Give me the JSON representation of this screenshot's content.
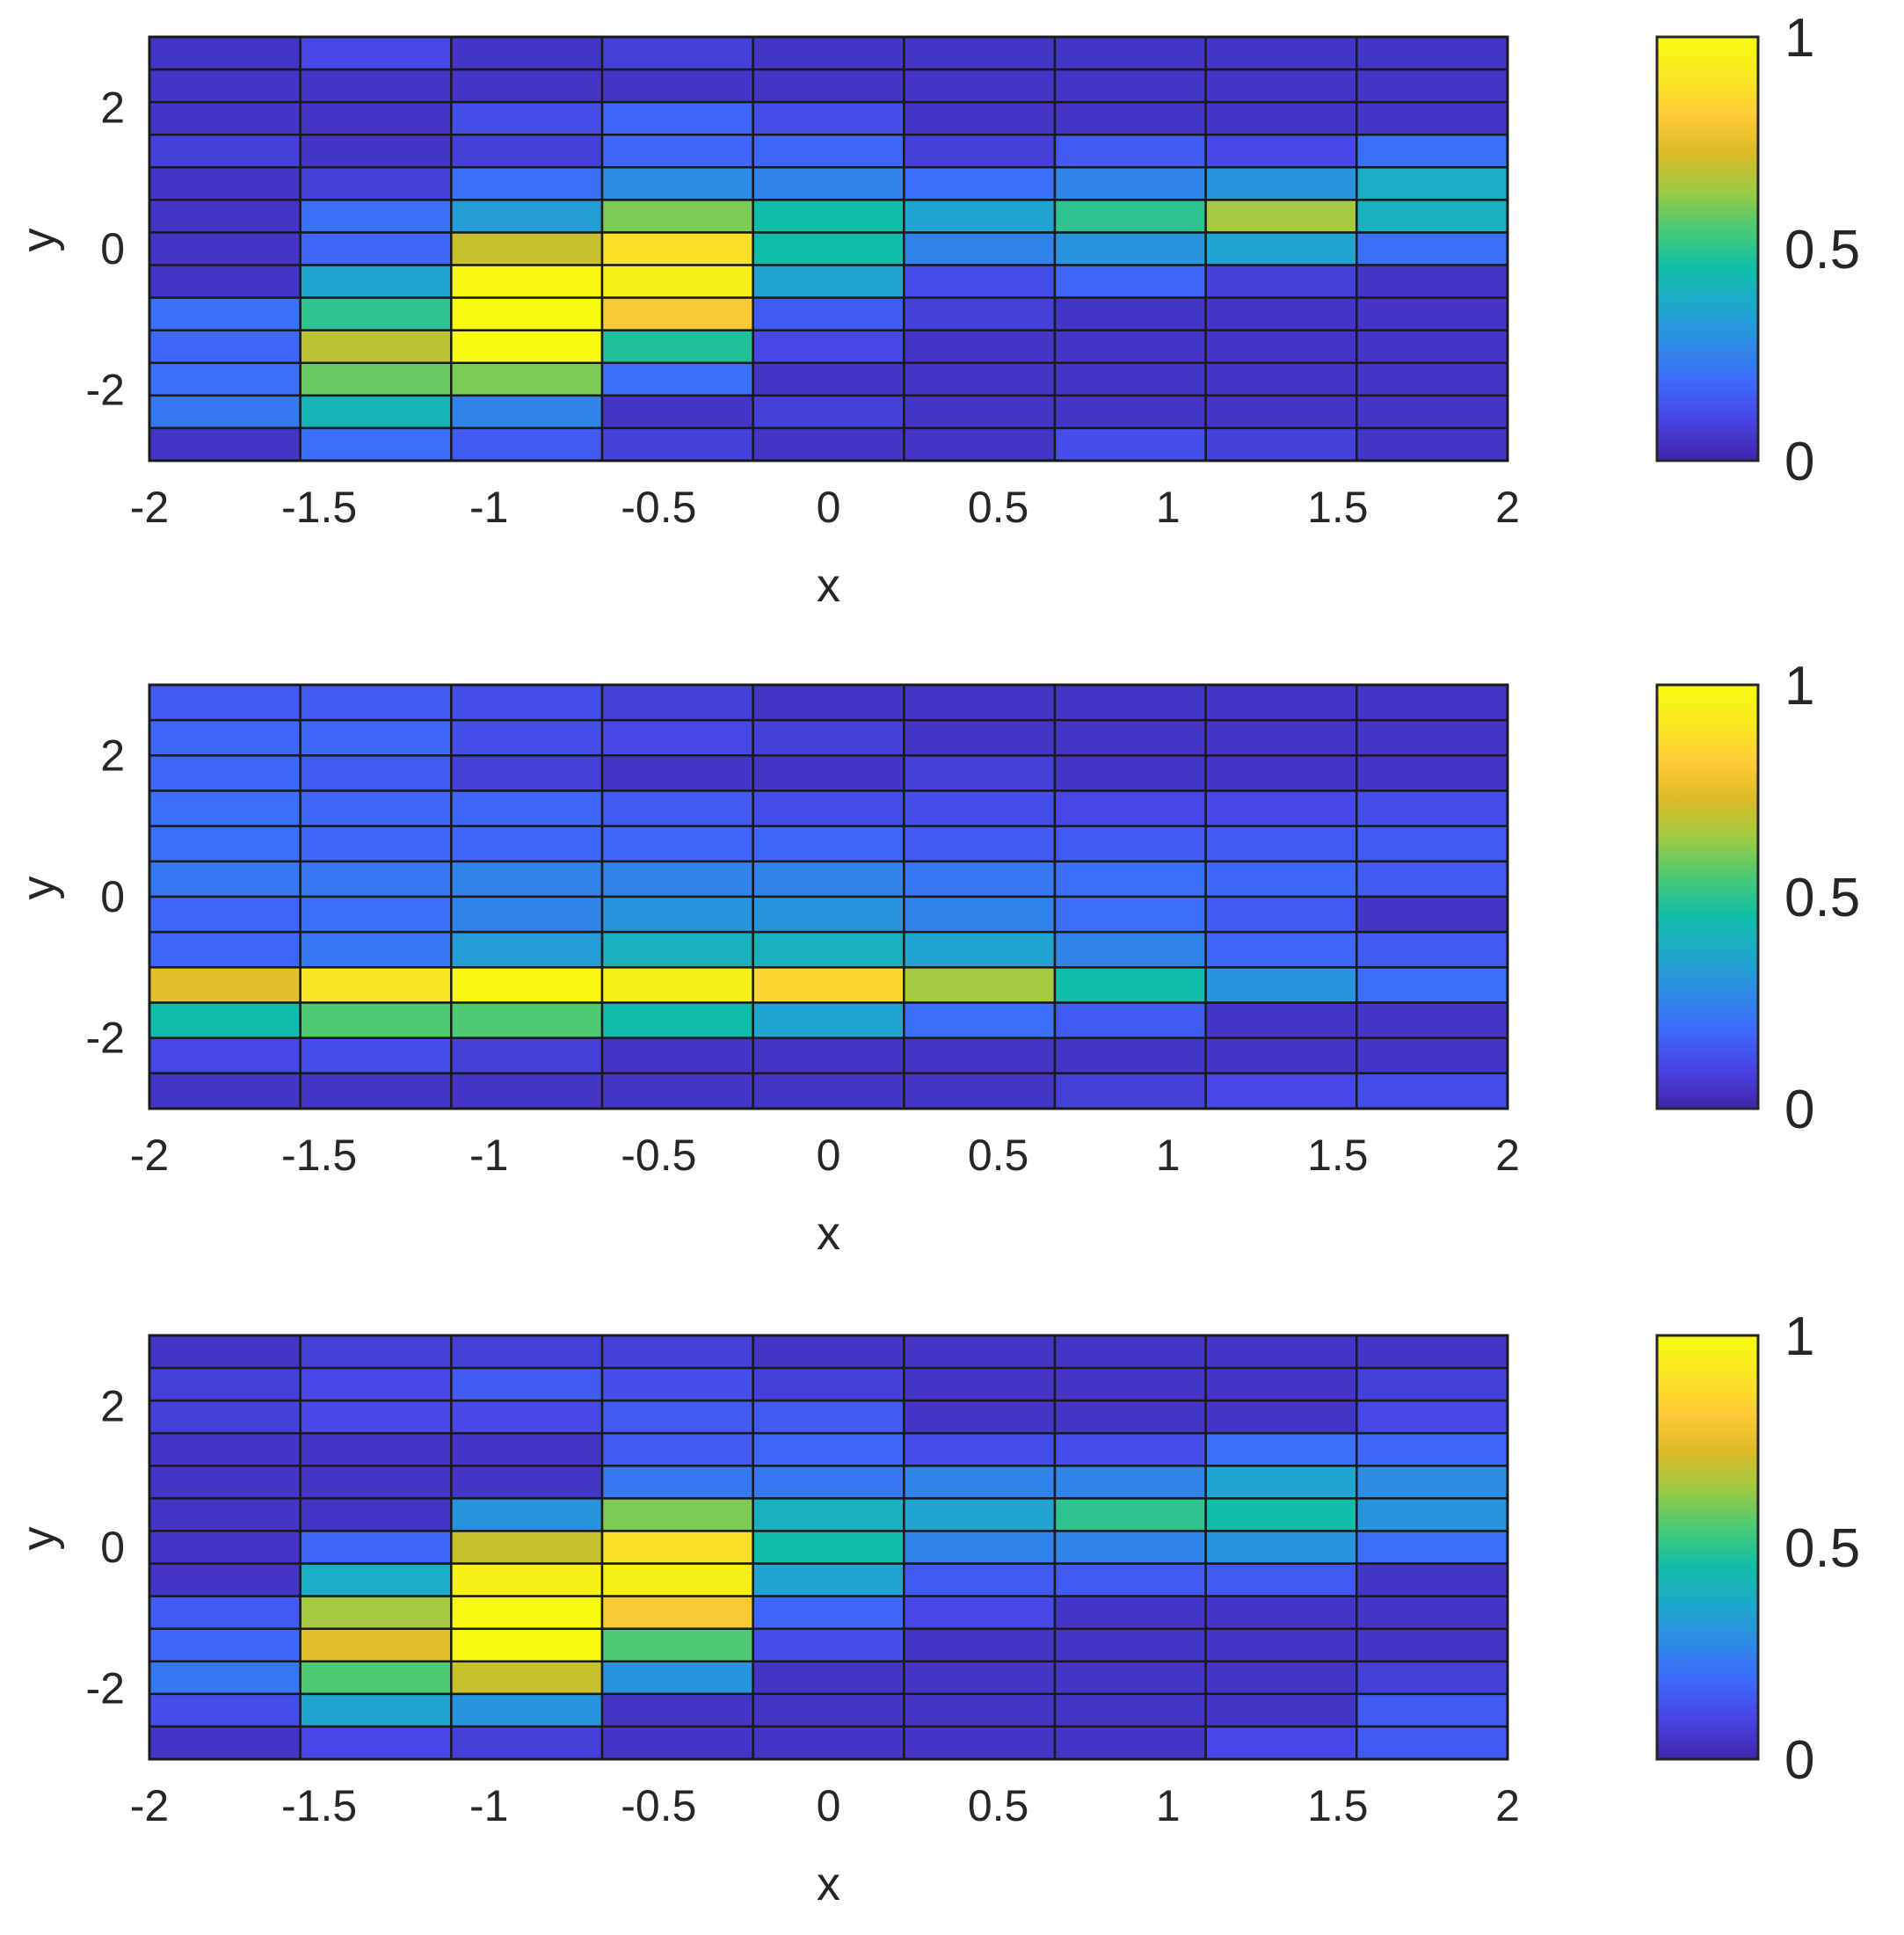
{
  "colormap": [
    "#3e26a8",
    "#4743e1",
    "#3d68fb",
    "#2d8be5",
    "#1da9cb",
    "#10bda8",
    "#49ca76",
    "#9bcb43",
    "#dcbb26",
    "#fecc37",
    "#f7e920",
    "#f9fb0e"
  ],
  "grid_line_color": "#1a1a1a",
  "chart_data": [
    {
      "type": "heatmap",
      "title": "",
      "xlabel": "x",
      "ylabel": "y",
      "xlim": [
        -2,
        2
      ],
      "ylim": [
        -3,
        3
      ],
      "xticks": [
        "-2",
        "-1.5",
        "-1",
        "-0.5",
        "0",
        "0.5",
        "1",
        "1.5",
        "2"
      ],
      "xtick_values": [
        -2,
        -1.5,
        -1,
        -0.5,
        0,
        0.5,
        1,
        1.5,
        2
      ],
      "yticks": [
        "-2",
        "0",
        "2"
      ],
      "ytick_values": [
        -2,
        0,
        2
      ],
      "clim": [
        0,
        1
      ],
      "colorbar_ticks": [
        "0",
        "0.5",
        "1"
      ],
      "colorbar_tick_values": [
        0,
        0.5,
        1
      ],
      "rows_top_to_bottom": [
        [
          0.05,
          0.1,
          0.05,
          0.08,
          0.05,
          0.05,
          0.05,
          0.05,
          0.05
        ],
        [
          0.05,
          0.05,
          0.05,
          0.05,
          0.05,
          0.05,
          0.05,
          0.05,
          0.05
        ],
        [
          0.05,
          0.05,
          0.12,
          0.18,
          0.12,
          0.05,
          0.05,
          0.05,
          0.05
        ],
        [
          0.08,
          0.05,
          0.08,
          0.18,
          0.18,
          0.08,
          0.15,
          0.1,
          0.2
        ],
        [
          0.05,
          0.08,
          0.2,
          0.28,
          0.25,
          0.2,
          0.25,
          0.3,
          0.38
        ],
        [
          0.05,
          0.2,
          0.33,
          0.6,
          0.45,
          0.35,
          0.5,
          0.65,
          0.4
        ],
        [
          0.05,
          0.18,
          0.7,
          0.88,
          0.45,
          0.25,
          0.3,
          0.35,
          0.2
        ],
        [
          0.05,
          0.35,
          0.98,
          0.95,
          0.35,
          0.12,
          0.18,
          0.08,
          0.05
        ],
        [
          0.2,
          0.5,
          1.0,
          0.8,
          0.15,
          0.08,
          0.05,
          0.05,
          0.05
        ],
        [
          0.18,
          0.68,
          1.0,
          0.48,
          0.1,
          0.05,
          0.05,
          0.05,
          0.05
        ],
        [
          0.2,
          0.58,
          0.6,
          0.2,
          0.05,
          0.05,
          0.05,
          0.05,
          0.05
        ],
        [
          0.22,
          0.42,
          0.25,
          0.05,
          0.08,
          0.05,
          0.05,
          0.05,
          0.05
        ],
        [
          0.05,
          0.2,
          0.15,
          0.08,
          0.05,
          0.05,
          0.12,
          0.08,
          0.05
        ]
      ]
    },
    {
      "type": "heatmap",
      "title": "",
      "xlabel": "x",
      "ylabel": "y",
      "xlim": [
        -2,
        2
      ],
      "ylim": [
        -3,
        3
      ],
      "xticks": [
        "-2",
        "-1.5",
        "-1",
        "-0.5",
        "0",
        "0.5",
        "1",
        "1.5",
        "2"
      ],
      "xtick_values": [
        -2,
        -1.5,
        -1,
        -0.5,
        0,
        0.5,
        1,
        1.5,
        2
      ],
      "yticks": [
        "-2",
        "0",
        "2"
      ],
      "ytick_values": [
        -2,
        0,
        2
      ],
      "clim": [
        0,
        1
      ],
      "colorbar_ticks": [
        "0",
        "0.5",
        "1"
      ],
      "colorbar_tick_values": [
        0,
        0.5,
        1
      ],
      "rows_top_to_bottom": [
        [
          0.15,
          0.15,
          0.12,
          0.08,
          0.05,
          0.05,
          0.05,
          0.05,
          0.05
        ],
        [
          0.18,
          0.18,
          0.12,
          0.1,
          0.08,
          0.05,
          0.05,
          0.05,
          0.05
        ],
        [
          0.18,
          0.15,
          0.08,
          0.05,
          0.05,
          0.08,
          0.05,
          0.05,
          0.05
        ],
        [
          0.2,
          0.18,
          0.18,
          0.15,
          0.12,
          0.12,
          0.1,
          0.1,
          0.12
        ],
        [
          0.2,
          0.18,
          0.18,
          0.18,
          0.18,
          0.15,
          0.15,
          0.15,
          0.15
        ],
        [
          0.22,
          0.22,
          0.25,
          0.25,
          0.25,
          0.22,
          0.2,
          0.18,
          0.15
        ],
        [
          0.18,
          0.2,
          0.25,
          0.3,
          0.3,
          0.25,
          0.2,
          0.15,
          0.05
        ],
        [
          0.18,
          0.22,
          0.32,
          0.4,
          0.4,
          0.35,
          0.25,
          0.18,
          0.15
        ],
        [
          0.75,
          0.9,
          0.98,
          0.95,
          0.85,
          0.65,
          0.45,
          0.3,
          0.2
        ],
        [
          0.45,
          0.55,
          0.55,
          0.45,
          0.35,
          0.2,
          0.15,
          0.05,
          0.05
        ],
        [
          0.1,
          0.12,
          0.08,
          0.05,
          0.05,
          0.05,
          0.05,
          0.05,
          0.05
        ],
        [
          0.05,
          0.05,
          0.05,
          0.05,
          0.05,
          0.05,
          0.08,
          0.1,
          0.12
        ]
      ]
    },
    {
      "type": "heatmap",
      "title": "",
      "xlabel": "x",
      "ylabel": "y",
      "xlim": [
        -2,
        2
      ],
      "ylim": [
        -3,
        3
      ],
      "xticks": [
        "-2",
        "-1.5",
        "-1",
        "-0.5",
        "0",
        "0.5",
        "1",
        "1.5",
        "2"
      ],
      "xtick_values": [
        -2,
        -1.5,
        -1,
        -0.5,
        0,
        0.5,
        1,
        1.5,
        2
      ],
      "yticks": [
        "-2",
        "0",
        "2"
      ],
      "ytick_values": [
        -2,
        0,
        2
      ],
      "clim": [
        0,
        1
      ],
      "colorbar_ticks": [
        "0",
        "0.5",
        "1"
      ],
      "colorbar_tick_values": [
        0,
        0.5,
        1
      ],
      "rows_top_to_bottom": [
        [
          0.05,
          0.08,
          0.08,
          0.08,
          0.05,
          0.05,
          0.05,
          0.05,
          0.05
        ],
        [
          0.08,
          0.1,
          0.15,
          0.12,
          0.08,
          0.05,
          0.05,
          0.05,
          0.08
        ],
        [
          0.08,
          0.1,
          0.1,
          0.15,
          0.15,
          0.05,
          0.05,
          0.05,
          0.1
        ],
        [
          0.05,
          0.05,
          0.05,
          0.15,
          0.18,
          0.12,
          0.12,
          0.2,
          0.18
        ],
        [
          0.05,
          0.05,
          0.05,
          0.22,
          0.22,
          0.25,
          0.25,
          0.35,
          0.28
        ],
        [
          0.05,
          0.05,
          0.3,
          0.6,
          0.4,
          0.35,
          0.5,
          0.45,
          0.3
        ],
        [
          0.05,
          0.18,
          0.7,
          0.88,
          0.45,
          0.25,
          0.25,
          0.3,
          0.2
        ],
        [
          0.05,
          0.38,
          0.95,
          0.95,
          0.35,
          0.15,
          0.15,
          0.15,
          0.05
        ],
        [
          0.15,
          0.65,
          1.0,
          0.8,
          0.18,
          0.1,
          0.05,
          0.05,
          0.05
        ],
        [
          0.18,
          0.75,
          1.0,
          0.55,
          0.12,
          0.05,
          0.05,
          0.05,
          0.05
        ],
        [
          0.22,
          0.55,
          0.7,
          0.3,
          0.05,
          0.05,
          0.05,
          0.05,
          0.08
        ],
        [
          0.12,
          0.35,
          0.3,
          0.05,
          0.05,
          0.05,
          0.05,
          0.05,
          0.15
        ],
        [
          0.05,
          0.1,
          0.08,
          0.05,
          0.05,
          0.05,
          0.05,
          0.1,
          0.15
        ]
      ]
    }
  ]
}
